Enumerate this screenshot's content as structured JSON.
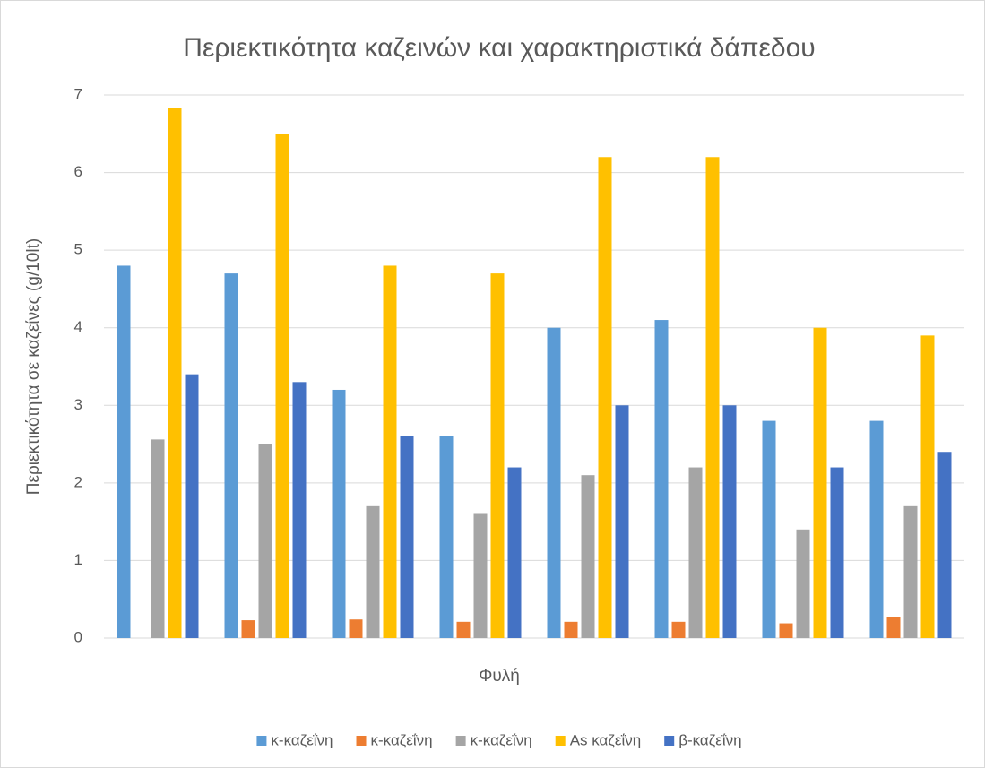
{
  "chart_data": {
    "type": "bar",
    "title": "Περιεκτικότητα καζεινών και χαρακτηριστικά δάπεδου",
    "x_label": "Φυλή",
    "y_label": "Περιεκτικότητα σε καζείνες (g/10lt)",
    "categories": [
      null,
      null,
      null,
      null,
      null,
      null,
      null,
      null
    ],
    "series": [
      {
        "name": "κ-καζεΐνη",
        "color": "#5b9bd5",
        "values": [
          4.8,
          4.7,
          3.2,
          2.6,
          4.0,
          4.1,
          2.8,
          2.8
        ]
      },
      {
        "name": "κ-καζεΐνη",
        "color": "#ed7d31",
        "values": [
          null,
          0.23,
          0.24,
          0.21,
          0.21,
          0.21,
          0.19,
          0.27
        ]
      },
      {
        "name": "κ-καζεΐνη",
        "color": "#a5a5a5",
        "values": [
          2.56,
          2.5,
          1.7,
          1.6,
          2.1,
          2.2,
          1.4,
          1.7
        ]
      },
      {
        "name": "As καζεΐνη",
        "color": "#ffc000",
        "values": [
          6.83,
          6.5,
          4.8,
          4.7,
          6.2,
          6.2,
          4.0,
          3.9
        ]
      },
      {
        "name": "β-καζεΐνη",
        "color": "#4472c4",
        "values": [
          3.4,
          3.3,
          2.6,
          2.2,
          3.0,
          3.0,
          2.2,
          2.4
        ]
      }
    ],
    "ylim": [
      0,
      7
    ],
    "yticks": [
      0,
      1,
      2,
      3,
      4,
      5,
      6,
      7
    ],
    "grid": true,
    "legend": "bottom"
  }
}
